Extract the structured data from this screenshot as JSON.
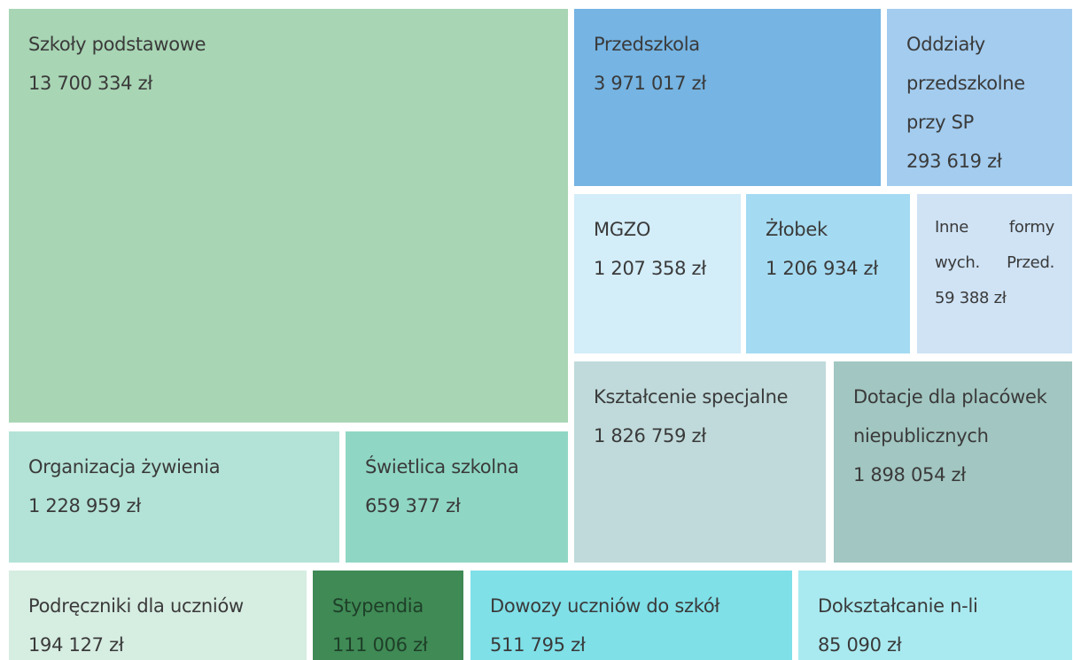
{
  "chart_data": {
    "type": "treemap",
    "categories": [
      "Szkoły podstawowe",
      "Przedszkola",
      "Oddziały przedszkolne przy SP",
      "MGZO",
      "Żłobek",
      "Inne formy wych. Przed.",
      "Kształcenie specjalne",
      "Dotacje dla placówek niepublicznych",
      "Organizacja żywienia",
      "Świetlica szkolna",
      "Podręczniki dla uczniów",
      "Stypendia",
      "Dowozy uczniów do szkół",
      "Dokształcanie n-li"
    ],
    "values": [
      13700334,
      3971017,
      293619,
      1207358,
      1206934,
      59388,
      1826759,
      1898054,
      1228959,
      659377,
      194127,
      111006,
      511795,
      85090
    ],
    "value_labels": [
      "13 700 334 zł",
      "3 971 017 zł",
      "293 619 zł",
      "1 207 358 zł",
      "1 206 934 zł",
      "59 388 zł",
      "1 826 759 zł",
      "1 898 054 zł",
      "1 228 959 zł",
      "659 377 zł",
      "194 127 zł",
      "111 006 zł",
      "511 795 zł",
      "85 090 zł"
    ],
    "colors": [
      "#a8d5b4",
      "#75b4e3",
      "#a3ccef",
      "#d3edf9",
      "#a5dbf2",
      "#cfe3f5",
      "#c0dadb",
      "#a2c6c1",
      "#b3e3d6",
      "#8fd7c4",
      "#d6ede2",
      "#3f8a55",
      "#7fe0e8",
      "#a9eaf0"
    ]
  }
}
